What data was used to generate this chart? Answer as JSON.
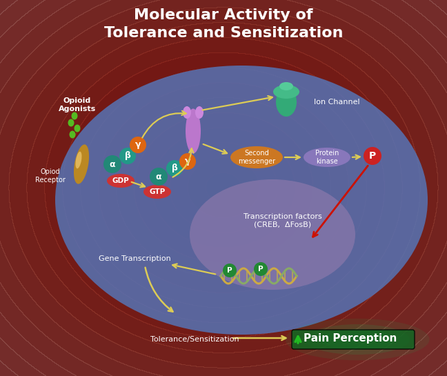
{
  "title_line1": "Molecular Activity of",
  "title_line2": "Tolerance and Sensitization",
  "title_color": "white",
  "title_fontsize": 16,
  "bg_color": "#5c0c0c",
  "cell_color": "#5577bb",
  "cell_alpha": 0.82,
  "nucleus_color": "#8877aa",
  "nucleus_alpha": 0.75,
  "labels": {
    "opioid_agonists": "Opioid\nAgonists",
    "opioid_receptor": "Opiod\nReceptor",
    "ion_channel": "Ion Channel",
    "second_messenger": "Second\nmessenger",
    "protein_kinase": "Protein\nkinase",
    "gdp": "GDP",
    "gtp": "GTP",
    "transcription_factors": "Transcription factors\n(CREB,  ΔFosB)",
    "gene_transcription": "Gene Transcription",
    "tolerance": "Tolerance/Sensitization",
    "pain_perception": "Pain Perception",
    "alpha": "α",
    "beta": "β",
    "gamma": "γ",
    "p": "P"
  },
  "colors": {
    "receptor": "#bb8822",
    "alpha_teal": "#228877",
    "beta_teal": "#229988",
    "gamma_orange": "#dd6611",
    "gdp_red": "#cc3333",
    "gtp_red": "#cc3333",
    "second_messenger_orange": "#cc7722",
    "protein_kinase_purple": "#8877bb",
    "p_red": "#cc2222",
    "dna_gold": "#ccaa44",
    "dna_green": "#88aa66",
    "p_green": "#228833",
    "arrow_yellow": "#ddcc55",
    "arrow_red": "#cc1100",
    "arrow_green": "#22bb22",
    "ion_channel_teal": "#33aa88",
    "receptor_purple": "#bb77cc",
    "pain_bg": "#116622",
    "pain_glow": "#00dd66"
  }
}
